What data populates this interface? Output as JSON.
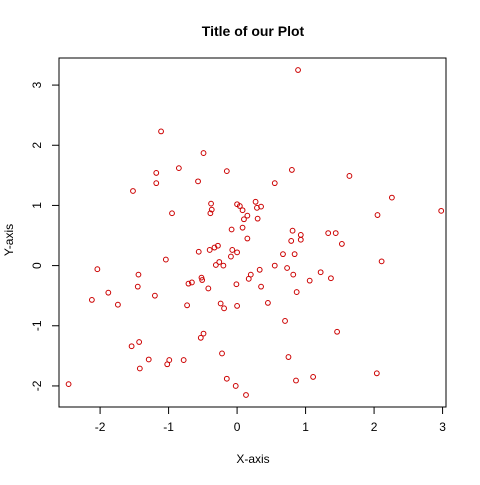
{
  "chart_data": {
    "type": "scatter",
    "title": "Title of our Plot",
    "xlabel": "X-axis",
    "ylabel": "Y-axis",
    "xlim": [
      -2.6,
      3.05
    ],
    "ylim": [
      -2.35,
      3.45
    ],
    "xticks": [
      -2,
      -1,
      0,
      1,
      2,
      3
    ],
    "yticks": [
      -2,
      -1,
      0,
      1,
      2,
      3
    ],
    "xtick_labels": [
      "-2",
      "-1",
      "0",
      "1",
      "2",
      "3"
    ],
    "ytick_labels": [
      "-2",
      "-1",
      "0",
      "1",
      "2",
      "3"
    ],
    "grid": false,
    "marker": "open-circle",
    "point_color": "#cc0000",
    "points": [
      {
        "x": 0.89,
        "y": 3.25
      },
      {
        "x": -1.11,
        "y": 2.23
      },
      {
        "x": -0.49,
        "y": 1.87
      },
      {
        "x": -0.85,
        "y": 1.62
      },
      {
        "x": 0.8,
        "y": 1.59
      },
      {
        "x": -0.15,
        "y": 1.57
      },
      {
        "x": -1.18,
        "y": 1.54
      },
      {
        "x": 1.64,
        "y": 1.49
      },
      {
        "x": -0.57,
        "y": 1.4
      },
      {
        "x": -1.18,
        "y": 1.37
      },
      {
        "x": 0.55,
        "y": 1.37
      },
      {
        "x": -1.52,
        "y": 1.24
      },
      {
        "x": 2.26,
        "y": 1.13
      },
      {
        "x": 0.27,
        "y": 1.06
      },
      {
        "x": 0.0,
        "y": 1.02
      },
      {
        "x": -0.38,
        "y": 1.03
      },
      {
        "x": 0.04,
        "y": 0.99
      },
      {
        "x": 0.35,
        "y": 0.98
      },
      {
        "x": 0.29,
        "y": 0.96
      },
      {
        "x": -0.37,
        "y": 0.93
      },
      {
        "x": 0.08,
        "y": 0.92
      },
      {
        "x": 2.98,
        "y": 0.91
      },
      {
        "x": -0.95,
        "y": 0.87
      },
      {
        "x": -0.39,
        "y": 0.87
      },
      {
        "x": 0.15,
        "y": 0.83
      },
      {
        "x": 2.05,
        "y": 0.84
      },
      {
        "x": 0.1,
        "y": 0.77
      },
      {
        "x": 0.3,
        "y": 0.78
      },
      {
        "x": 0.08,
        "y": 0.63
      },
      {
        "x": -0.08,
        "y": 0.6
      },
      {
        "x": 0.81,
        "y": 0.58
      },
      {
        "x": 1.33,
        "y": 0.54
      },
      {
        "x": 1.44,
        "y": 0.54
      },
      {
        "x": 0.93,
        "y": 0.51
      },
      {
        "x": 0.15,
        "y": 0.45
      },
      {
        "x": 0.93,
        "y": 0.43
      },
      {
        "x": 0.79,
        "y": 0.41
      },
      {
        "x": 1.53,
        "y": 0.36
      },
      {
        "x": -0.28,
        "y": 0.33
      },
      {
        "x": -0.33,
        "y": 0.3
      },
      {
        "x": -0.4,
        "y": 0.26
      },
      {
        "x": -0.07,
        "y": 0.26
      },
      {
        "x": 0.0,
        "y": 0.22
      },
      {
        "x": -0.56,
        "y": 0.23
      },
      {
        "x": 0.84,
        "y": 0.19
      },
      {
        "x": 0.67,
        "y": 0.19
      },
      {
        "x": -0.09,
        "y": 0.15
      },
      {
        "x": -1.04,
        "y": 0.1
      },
      {
        "x": 2.11,
        "y": 0.07
      },
      {
        "x": -0.26,
        "y": 0.06
      },
      {
        "x": -0.31,
        "y": 0.01
      },
      {
        "x": -0.2,
        "y": 0.0
      },
      {
        "x": 0.55,
        "y": 0.0
      },
      {
        "x": 0.73,
        "y": -0.04
      },
      {
        "x": -2.04,
        "y": -0.06
      },
      {
        "x": 0.33,
        "y": -0.07
      },
      {
        "x": 1.22,
        "y": -0.11
      },
      {
        "x": -1.44,
        "y": -0.15
      },
      {
        "x": 0.82,
        "y": -0.15
      },
      {
        "x": 0.2,
        "y": -0.15
      },
      {
        "x": -0.52,
        "y": -0.2
      },
      {
        "x": 0.17,
        "y": -0.22
      },
      {
        "x": 1.37,
        "y": -0.21
      },
      {
        "x": -0.51,
        "y": -0.24
      },
      {
        "x": 1.06,
        "y": -0.25
      },
      {
        "x": -0.66,
        "y": -0.28
      },
      {
        "x": -0.71,
        "y": -0.3
      },
      {
        "x": -0.01,
        "y": -0.31
      },
      {
        "x": 0.35,
        "y": -0.35
      },
      {
        "x": -1.45,
        "y": -0.35
      },
      {
        "x": -0.42,
        "y": -0.38
      },
      {
        "x": 0.87,
        "y": -0.44
      },
      {
        "x": -1.88,
        "y": -0.45
      },
      {
        "x": -1.2,
        "y": -0.5
      },
      {
        "x": -2.12,
        "y": -0.57
      },
      {
        "x": 0.45,
        "y": -0.62
      },
      {
        "x": -0.24,
        "y": -0.63
      },
      {
        "x": -1.74,
        "y": -0.65
      },
      {
        "x": -0.73,
        "y": -0.66
      },
      {
        "x": 0.0,
        "y": -0.67
      },
      {
        "x": -0.19,
        "y": -0.71
      },
      {
        "x": 0.7,
        "y": -0.92
      },
      {
        "x": 1.46,
        "y": -1.1
      },
      {
        "x": -0.49,
        "y": -1.13
      },
      {
        "x": -0.53,
        "y": -1.2
      },
      {
        "x": -1.43,
        "y": -1.27
      },
      {
        "x": -1.54,
        "y": -1.34
      },
      {
        "x": -0.22,
        "y": -1.46
      },
      {
        "x": 0.75,
        "y": -1.52
      },
      {
        "x": -1.29,
        "y": -1.56
      },
      {
        "x": -0.99,
        "y": -1.57
      },
      {
        "x": -0.78,
        "y": -1.57
      },
      {
        "x": -1.02,
        "y": -1.64
      },
      {
        "x": -1.42,
        "y": -1.71
      },
      {
        "x": 2.04,
        "y": -1.79
      },
      {
        "x": 1.11,
        "y": -1.85
      },
      {
        "x": -0.15,
        "y": -1.88
      },
      {
        "x": 0.86,
        "y": -1.91
      },
      {
        "x": -2.46,
        "y": -1.97
      },
      {
        "x": -0.02,
        "y": -2.0
      },
      {
        "x": 0.13,
        "y": -2.15
      }
    ]
  }
}
